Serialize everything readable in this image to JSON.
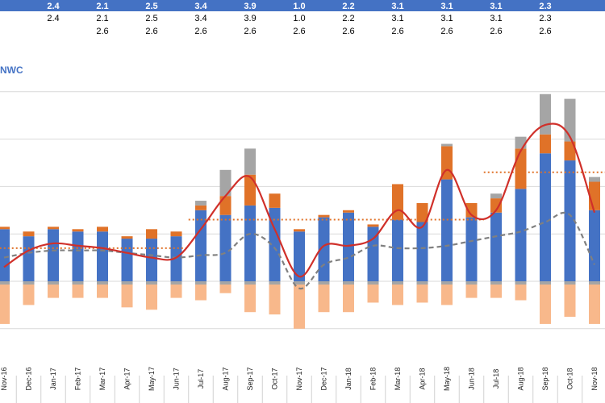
{
  "subtitle_fragment": "NWC",
  "colors": {
    "header_band": "#4472c4",
    "base_bar": "#4472c4",
    "increase_bar": "#e07228",
    "gray_bar": "#a5a5a5",
    "negative_bar": "#f8b88b",
    "negative_base": "#a5a5a5",
    "trend_line": "#d0302a",
    "dashed_line": "#808080",
    "avg_line": "#e07228",
    "gridline": "#d9d9d9"
  },
  "chart_data": {
    "type": "bar",
    "categories": [
      "Nov-16",
      "Dec-16",
      "Jan-17",
      "Feb-17",
      "Mar-17",
      "Apr-17",
      "May-17",
      "Jun-17",
      "Jul-17",
      "Aug-17",
      "Sep-17",
      "Oct-17",
      "Nov-17",
      "Dec-17",
      "Jan-18",
      "Feb-18",
      "Mar-18",
      "Apr-18",
      "May-18",
      "Jun-18",
      "Jul-18",
      "Aug-18",
      "Sep-18",
      "Oct-18",
      "Nov-18"
    ],
    "header_row": [
      "",
      "",
      "2.4",
      "",
      "2.1",
      "",
      "2.5",
      "",
      "3.4",
      "",
      "3.9",
      "",
      "1.0",
      "",
      "2.2",
      "",
      "3.1",
      "",
      "3.1",
      "",
      "3.1",
      "",
      "2.3",
      "",
      ""
    ],
    "row2": [
      "",
      "",
      "2.4",
      "",
      "2.1",
      "",
      "2.5",
      "",
      "3.4",
      "",
      "3.9",
      "",
      "1.0",
      "",
      "2.2",
      "",
      "3.1",
      "",
      "3.1",
      "",
      "3.1",
      "",
      "2.3",
      "",
      ""
    ],
    "row3": [
      "",
      "",
      "",
      "",
      "2.6",
      "",
      "2.6",
      "",
      "2.6",
      "",
      "2.6",
      "",
      "2.6",
      "",
      "2.6",
      "",
      "2.6",
      "",
      "2.6",
      "",
      "2.6",
      "",
      "2.6",
      "",
      ""
    ],
    "ylim": [
      -2.3,
      10
    ],
    "series": [
      {
        "kind": "base",
        "values": [
          2.2,
          1.9,
          2.2,
          2.1,
          2.1,
          1.8,
          1.8,
          1.9,
          3.0,
          2.8,
          3.2,
          3.1,
          2.1,
          2.7,
          2.9,
          2.3,
          2.6,
          2.5,
          4.3,
          2.7,
          2.9,
          3.9,
          5.4,
          5.1,
          3.0
        ]
      },
      {
        "kind": "increase",
        "values": [
          0.1,
          0.2,
          0.1,
          0.1,
          0.2,
          0.1,
          0.4,
          0.2,
          0.2,
          0.8,
          1.3,
          0.6,
          0.1,
          0.1,
          0.1,
          0.1,
          1.5,
          0.8,
          1.4,
          0.6,
          0.6,
          1.7,
          0.8,
          0.8,
          1.2
        ]
      },
      {
        "kind": "gray",
        "values": [
          0,
          0,
          0,
          0,
          0,
          0,
          0,
          0,
          0.2,
          1.1,
          1.1,
          0,
          0,
          0,
          0,
          0,
          0,
          0,
          0.1,
          0,
          0.2,
          0.5,
          1.7,
          1.8,
          0.2
        ]
      },
      {
        "kind": "negative",
        "values": [
          -1.8,
          -1.0,
          -0.7,
          -0.7,
          -0.7,
          -1.1,
          -1.2,
          -0.7,
          -0.8,
          -0.5,
          -1.3,
          -1.4,
          -2.0,
          -1.3,
          -1.3,
          -0.9,
          -1.0,
          -0.9,
          -1.0,
          -0.7,
          -0.7,
          -0.8,
          -1.8,
          -1.5,
          -1.8
        ]
      },
      {
        "kind": "trend_line",
        "values": [
          0.6,
          1.3,
          1.6,
          1.5,
          1.4,
          1.2,
          1.0,
          1.0,
          2.2,
          3.6,
          4.4,
          2.2,
          0.2,
          1.5,
          1.5,
          1.8,
          3.0,
          2.3,
          4.7,
          2.8,
          3.0,
          5.5,
          6.6,
          6.1,
          2.9
        ]
      },
      {
        "kind": "dashed_line",
        "values": [
          1.0,
          1.2,
          1.3,
          1.3,
          1.3,
          1.2,
          1.1,
          1.0,
          1.1,
          1.2,
          2.0,
          1.4,
          -0.3,
          0.7,
          1.0,
          1.5,
          1.4,
          1.4,
          1.5,
          1.7,
          1.9,
          2.1,
          2.5,
          2.8,
          0.7
        ]
      }
    ],
    "avg_lines": [
      {
        "from": 0,
        "to": 7,
        "value": 1.4
      },
      {
        "from": 8,
        "to": 19,
        "value": 2.6
      },
      {
        "from": 20,
        "to": 24,
        "value": 4.6
      }
    ],
    "grid": true,
    "legend": "none"
  }
}
